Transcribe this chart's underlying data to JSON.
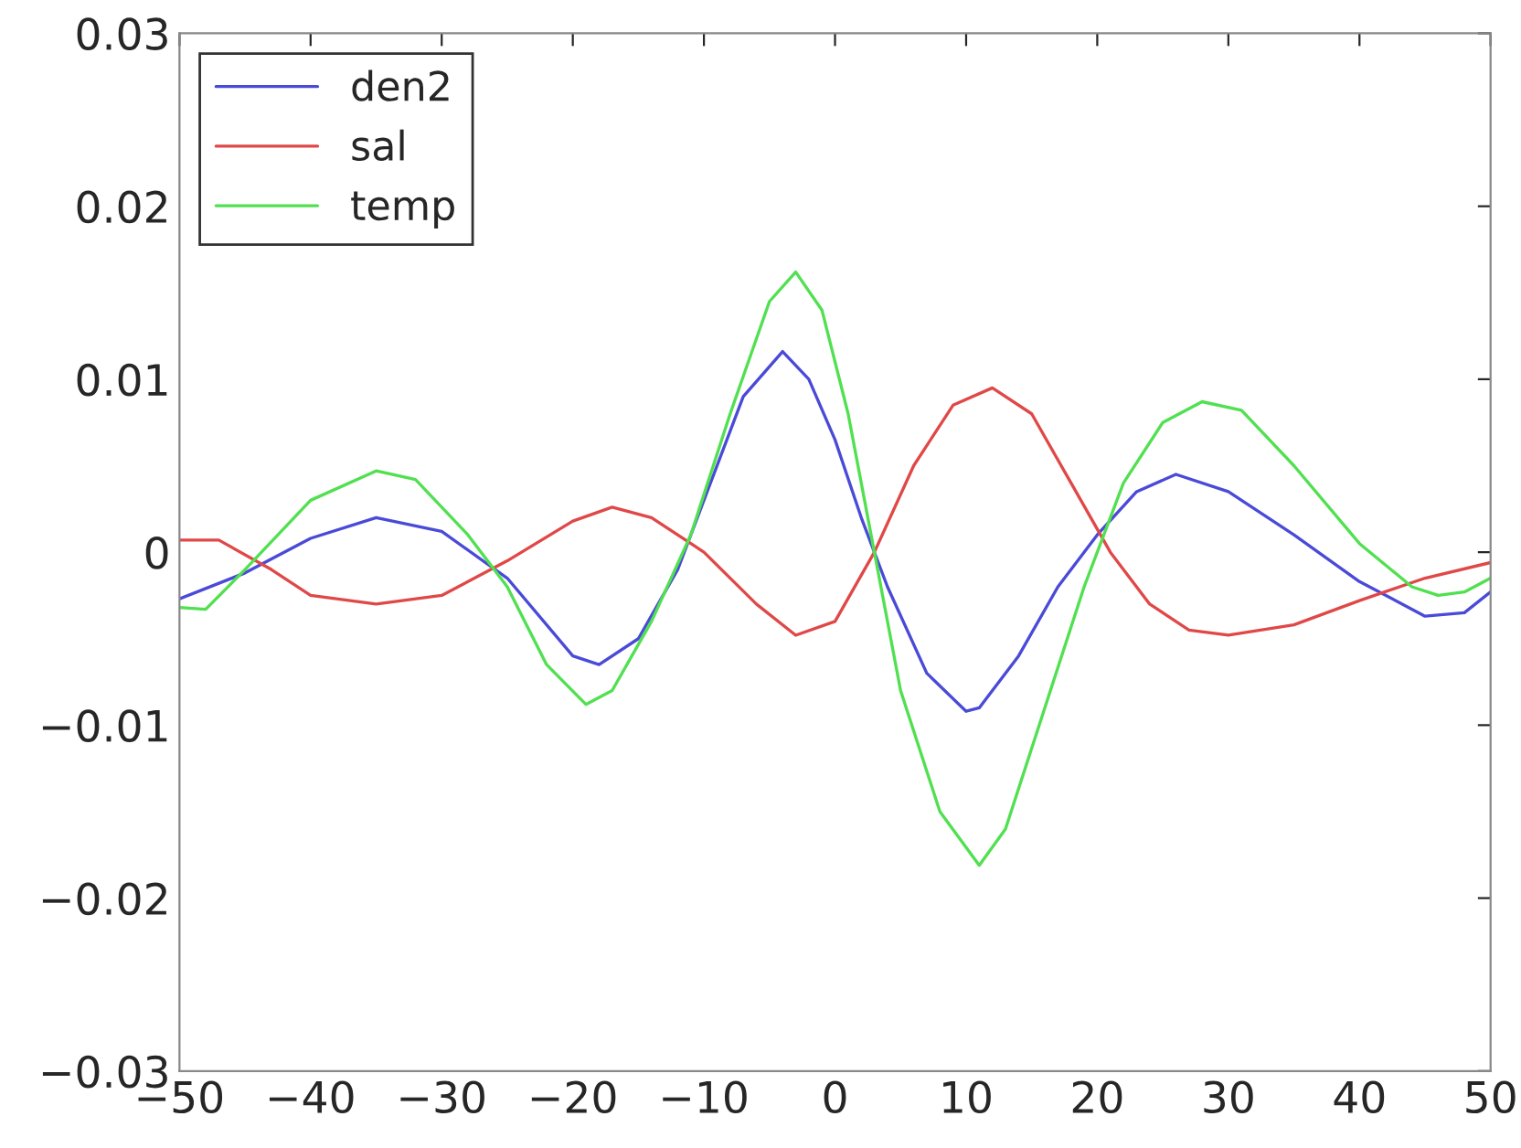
{
  "chart_data": {
    "type": "line",
    "xlim": [
      -50,
      50
    ],
    "ylim": [
      -0.03,
      0.03
    ],
    "xticks": [
      {
        "value": -50,
        "label": "−50"
      },
      {
        "value": -40,
        "label": "−40"
      },
      {
        "value": -30,
        "label": "−30"
      },
      {
        "value": -20,
        "label": "−20"
      },
      {
        "value": -10,
        "label": "−10"
      },
      0,
      10,
      20,
      30,
      40,
      50
    ],
    "yticks": [
      {
        "value": -0.03,
        "label": "−0.03"
      },
      {
        "value": -0.02,
        "label": "−0.02"
      },
      {
        "value": -0.01,
        "label": "−0.01"
      },
      0,
      0.01,
      0.02,
      0.03
    ],
    "grid": false,
    "legend": "top left",
    "marker": "none",
    "line_style": "solid",
    "series": [
      {
        "name": "den2",
        "color": "#4a4ad8",
        "x": [
          -50,
          -45,
          -40,
          -35,
          -30,
          -25,
          -20,
          -18,
          -15,
          -12,
          -10,
          -7,
          -4,
          -2,
          0,
          2,
          4,
          7,
          10,
          11,
          14,
          17,
          20,
          23,
          26,
          30,
          35,
          40,
          45,
          48,
          50
        ],
        "values": [
          -0.0027,
          -0.0012,
          0.0008,
          0.002,
          0.0012,
          -0.0015,
          -0.006,
          -0.0065,
          -0.005,
          -0.001,
          0.003,
          0.009,
          0.0116,
          0.01,
          0.0065,
          0.002,
          -0.002,
          -0.007,
          -0.0092,
          -0.009,
          -0.006,
          -0.002,
          0.001,
          0.0035,
          0.0045,
          0.0035,
          0.001,
          -0.0017,
          -0.0037,
          -0.0035,
          -0.0023
        ]
      },
      {
        "name": "sal",
        "color": "#e04848",
        "x": [
          -50,
          -47,
          -43,
          -40,
          -35,
          -30,
          -25,
          -20,
          -17,
          -14,
          -10,
          -6,
          -3,
          0,
          3,
          6,
          9,
          12,
          15,
          18,
          21,
          24,
          27,
          30,
          35,
          40,
          45,
          50
        ],
        "values": [
          0.0007,
          0.0007,
          -0.001,
          -0.0025,
          -0.003,
          -0.0025,
          -0.0005,
          0.0018,
          0.0026,
          0.002,
          0,
          -0.003,
          -0.0048,
          -0.004,
          0,
          0.005,
          0.0085,
          0.0095,
          0.008,
          0.004,
          0,
          -0.003,
          -0.0045,
          -0.0048,
          -0.0042,
          -0.0028,
          -0.0015,
          -0.0006
        ]
      },
      {
        "name": "temp",
        "color": "#50e050",
        "x": [
          -50,
          -48,
          -45,
          -40,
          -35,
          -32,
          -28,
          -25,
          -22,
          -19,
          -17,
          -14,
          -11,
          -8,
          -5,
          -3,
          -1,
          1,
          3,
          5,
          8,
          11,
          13,
          16,
          19,
          22,
          25,
          28,
          31,
          35,
          40,
          44,
          46,
          48,
          50
        ],
        "values": [
          -0.0032,
          -0.0033,
          -0.001,
          0.003,
          0.0047,
          0.0042,
          0.001,
          -0.002,
          -0.0065,
          -0.0088,
          -0.008,
          -0.004,
          0.001,
          0.008,
          0.0145,
          0.0162,
          0.014,
          0.008,
          0.0,
          -0.008,
          -0.015,
          -0.0181,
          -0.016,
          -0.009,
          -0.002,
          0.004,
          0.0075,
          0.0087,
          0.0082,
          0.005,
          0.0005,
          -0.002,
          -0.0025,
          -0.0023,
          -0.0015
        ]
      }
    ]
  }
}
